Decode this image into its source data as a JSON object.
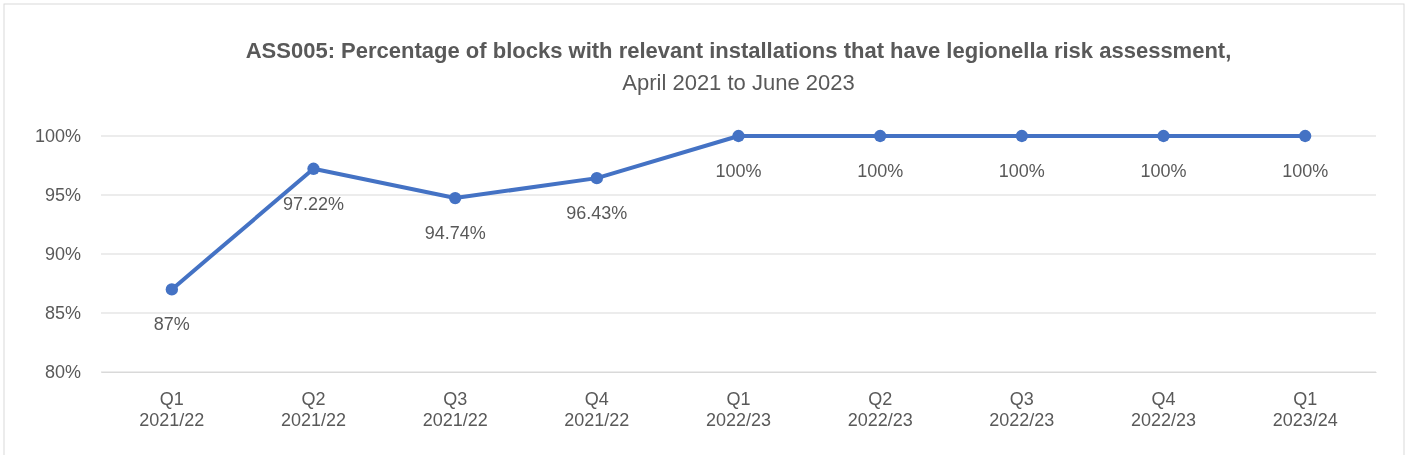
{
  "chart_data": {
    "type": "line",
    "title": "ASS005: Percentage of blocks with relevant installations that have legionella risk assessment,",
    "subtitle": "April 2021 to June 2023",
    "categories": [
      "Q1 2021/22",
      "Q2 2021/22",
      "Q3 2021/22",
      "Q4 2021/22",
      "Q1 2022/23",
      "Q2 2022/23",
      "Q3 2022/23",
      "Q4 2022/23",
      "Q1 2023/24"
    ],
    "series": [
      {
        "color": "#4472c4",
        "values": [
          87,
          97.22,
          94.74,
          96.43,
          100,
          100,
          100,
          100,
          100
        ],
        "value_labels": [
          "87%",
          "97.22%",
          "94.74%",
          "96.43%",
          "100%",
          "100%",
          "100%",
          "100%",
          "100%"
        ]
      }
    ],
    "ylim": [
      80,
      100
    ],
    "yticks": [
      {
        "value": 80,
        "label": "80%"
      },
      {
        "value": 85,
        "label": "85%"
      },
      {
        "value": 90,
        "label": "90%"
      },
      {
        "value": 95,
        "label": "95%"
      },
      {
        "value": 100,
        "label": "100%"
      }
    ],
    "grid": "y",
    "marker": "circle",
    "line_style": "solid"
  }
}
